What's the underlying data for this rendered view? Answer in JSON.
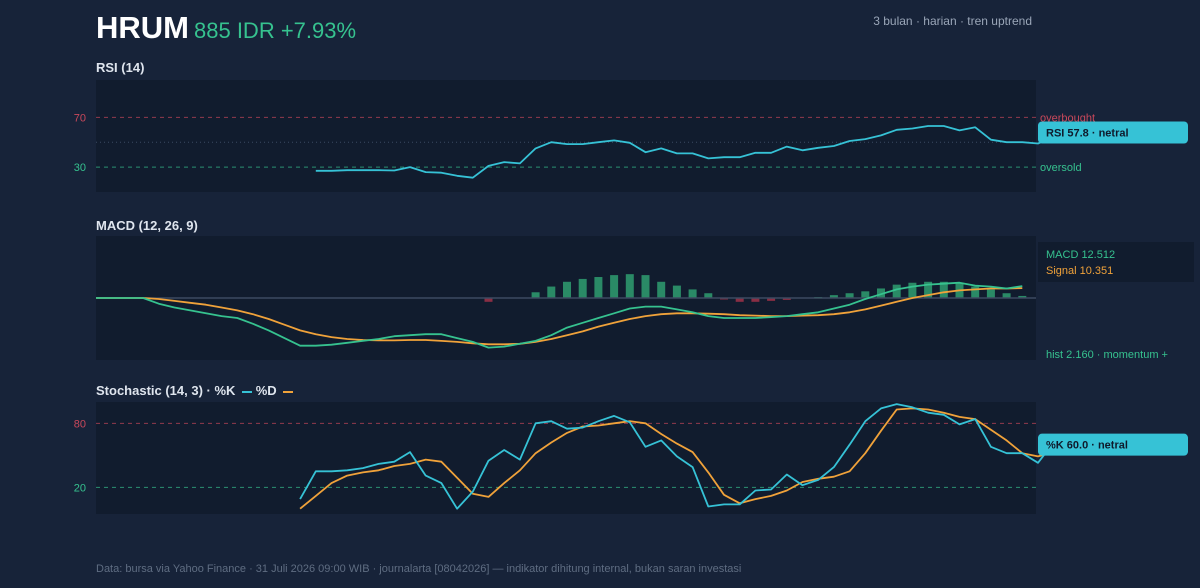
{
  "header": {
    "ticker": "HRUM",
    "price_line": "885 IDR +7.93%",
    "subtitle": "3 bulan · harian · tren uptrend"
  },
  "footer": "Data: bursa via Yahoo Finance · 31 Juli 2026 09:00 WIB · journalarta [08042026] — indikator dihitung internal, bukan saran investasi",
  "colors": {
    "background": "#172339",
    "panel": "#111c2e",
    "rsi_line": "#36c2d6",
    "macd_line": "#36c28f",
    "signal_line": "#f0a23a",
    "hist_pos": "#2a8a66",
    "hist_neg": "#8a2e44",
    "overbought": "#c9485b",
    "oversold": "#36c28f"
  },
  "chart_data": [
    {
      "type": "line",
      "title": "RSI (14)",
      "ylim": [
        10,
        100
      ],
      "ticks": [
        70,
        30
      ],
      "levels": [
        {
          "value": 70,
          "label": "overbought"
        },
        {
          "value": 30,
          "label": "oversold"
        }
      ],
      "start_index": 14,
      "series": [
        {
          "values": [
            27,
            27,
            27.5,
            27.5,
            27.5,
            27.3,
            30,
            26,
            25.5,
            23,
            21.5,
            31,
            34,
            33,
            45,
            50,
            48.5,
            48.5,
            50,
            51.5,
            49.5,
            42,
            45,
            41,
            41,
            37,
            38,
            38,
            41.5,
            41.5,
            46.5,
            43.5,
            45.5,
            47,
            51,
            52.5,
            55.5,
            60,
            61,
            63,
            63,
            59.5,
            62,
            52,
            50,
            50,
            49,
            54.5,
            57.8
          ]
        }
      ],
      "callout": "RSI 57.8 · netral"
    },
    {
      "type": "line",
      "title": "MACD (12, 26, 9)",
      "ylim": [
        -65,
        65
      ],
      "series": [
        {
          "name": "MACD",
          "values": [
            0,
            0,
            0,
            0,
            -6,
            -10,
            -13,
            -16,
            -19,
            -21,
            -27,
            -34,
            -42,
            -50,
            -50,
            -49,
            -47,
            -45,
            -43,
            -40,
            -39,
            -38,
            -38,
            -42,
            -46,
            -52,
            -51,
            -48,
            -45,
            -39,
            -31,
            -26,
            -21,
            -16,
            -11,
            -9,
            -9,
            -12,
            -15,
            -19,
            -21,
            -21,
            -21,
            -20,
            -19,
            -17,
            -15,
            -11,
            -7,
            -1,
            4,
            9,
            12,
            14,
            15,
            16,
            13,
            12,
            10,
            12.512
          ]
        },
        {
          "name": "Signal",
          "values": [
            0,
            0,
            0,
            0,
            -1,
            -3,
            -5,
            -7,
            -10,
            -13,
            -17,
            -22,
            -28,
            -34,
            -38,
            -41,
            -43,
            -44,
            -44.5,
            -44.5,
            -44,
            -44,
            -45,
            -46,
            -47.5,
            -48.5,
            -48.5,
            -48,
            -46,
            -43,
            -39,
            -35,
            -30,
            -26,
            -22,
            -19,
            -17,
            -16,
            -16,
            -16.5,
            -17,
            -18,
            -18.5,
            -19,
            -19,
            -18.5,
            -18,
            -17,
            -15,
            -12,
            -8,
            -4,
            0,
            3,
            6,
            8,
            9,
            10,
            10,
            10.351
          ]
        }
      ],
      "histogram": [
        0,
        0,
        0,
        0,
        0,
        0,
        0,
        0,
        0,
        0,
        0,
        0,
        0,
        0,
        0,
        0,
        0,
        0,
        0,
        0,
        0,
        0,
        0,
        0,
        0,
        -4,
        0,
        0,
        6,
        12,
        17,
        20,
        22,
        24,
        25,
        24,
        17,
        13,
        9,
        5,
        -1,
        -4,
        -4,
        -3,
        -2,
        0,
        1,
        3,
        5,
        7,
        10,
        14,
        16,
        17,
        17,
        16,
        12,
        9,
        5,
        2.16
      ],
      "readouts": [
        "MACD 12.512",
        "Signal 10.351"
      ],
      "hist_label": "hist 2.160 · momentum +"
    },
    {
      "type": "line",
      "title": "Stochastic (14, 3) · %K",
      "title_d": "%D",
      "ylim": [
        -5,
        100
      ],
      "ticks": [
        80,
        20
      ],
      "levels": [
        {
          "value": 80
        },
        {
          "value": 20
        }
      ],
      "series": [
        {
          "name": "%K",
          "start_index": 13,
          "values": [
            9,
            35,
            35,
            36,
            38,
            42,
            44,
            53,
            31,
            24,
            0,
            16,
            45,
            55,
            46,
            80,
            82,
            75,
            76,
            82,
            87,
            81,
            58,
            64,
            49,
            39,
            2,
            4,
            4,
            17,
            18,
            32,
            22,
            27,
            39,
            60,
            82,
            94,
            98,
            95,
            90,
            88,
            79,
            84,
            58,
            52,
            52,
            43,
            62,
            60
          ]
        },
        {
          "name": "%D",
          "start_index": 13,
          "values": [
            0,
            12,
            24,
            31,
            34,
            36,
            40,
            42,
            46,
            44,
            29,
            14,
            11,
            24,
            36,
            52,
            62,
            71,
            77,
            78,
            80,
            82,
            80,
            70,
            61,
            53,
            34,
            13,
            5,
            9,
            12,
            17,
            25,
            28,
            30,
            35,
            52,
            73,
            93,
            94,
            93,
            90,
            86,
            84,
            74,
            64,
            52,
            49,
            53,
            56
          ]
        }
      ],
      "callout": "%K 60.0 · netral"
    }
  ]
}
